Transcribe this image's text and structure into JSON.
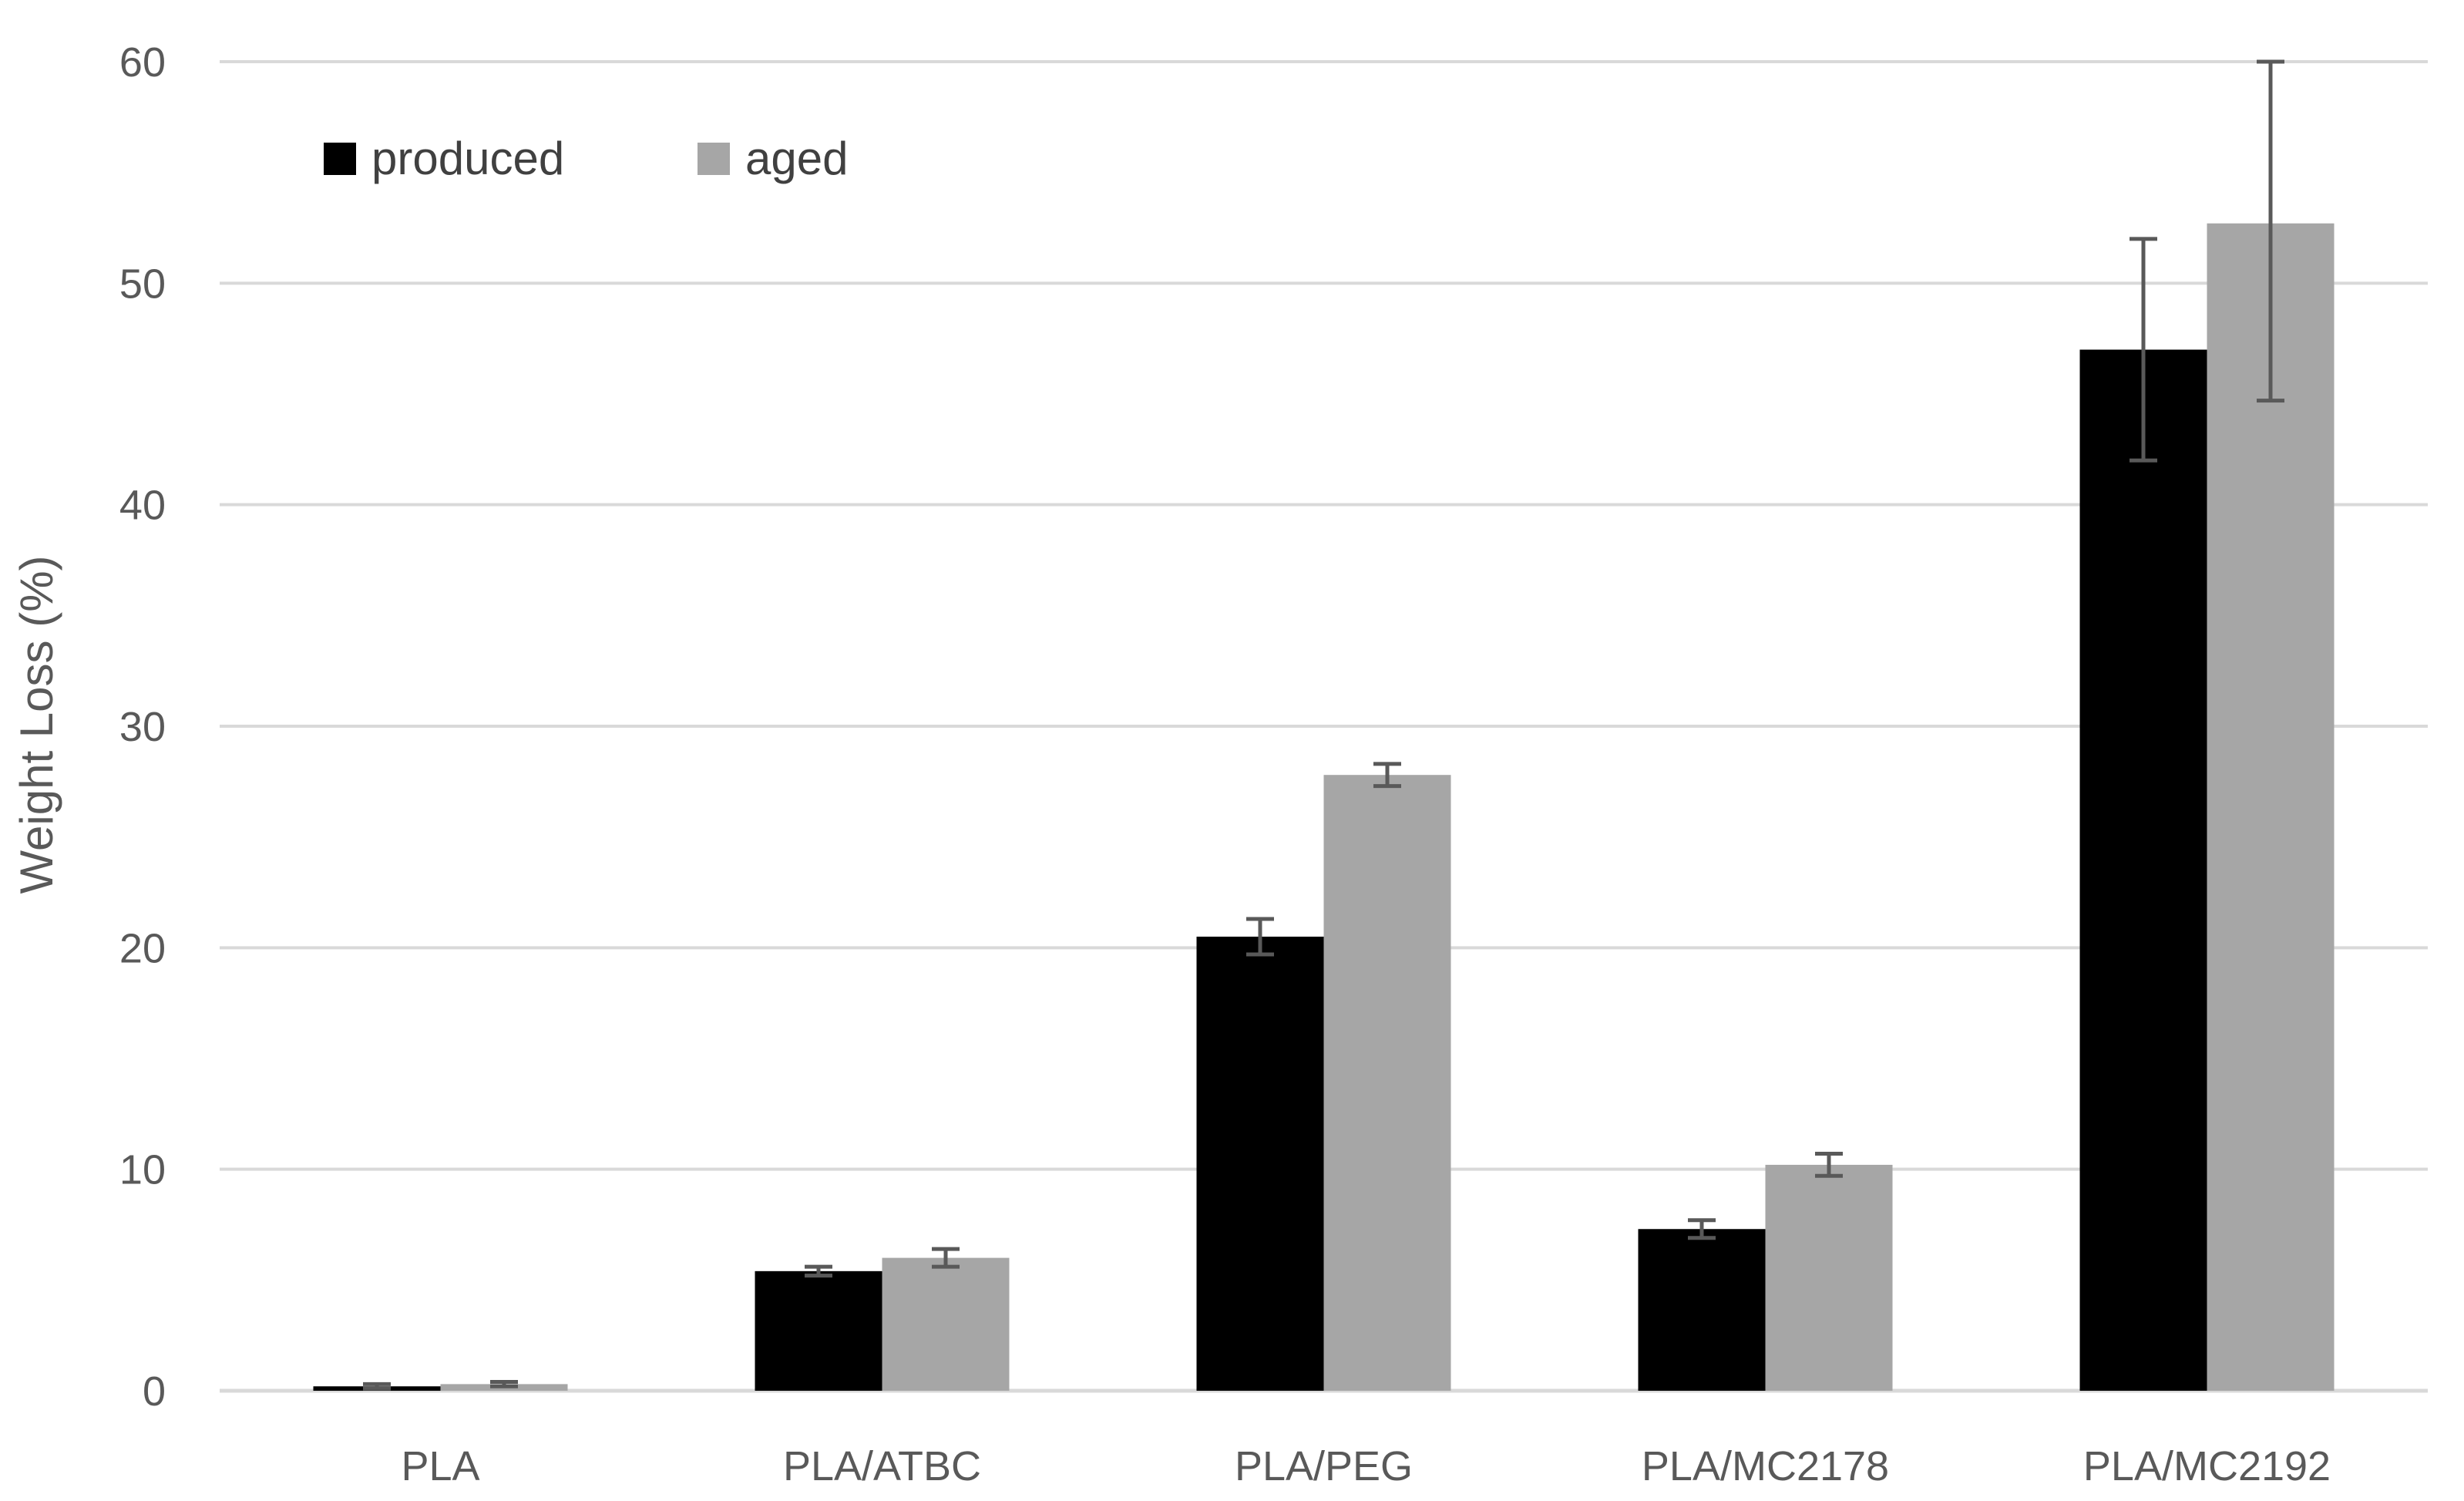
{
  "chart_data": {
    "type": "bar",
    "title": "",
    "xlabel": "",
    "ylabel": "Weight Loss (%)",
    "ylim": [
      0,
      60
    ],
    "yticks": [
      0,
      10,
      20,
      30,
      40,
      50,
      60
    ],
    "grid": true,
    "legend_position": "top-left",
    "categories": [
      "PLA",
      "PLA/ATBC",
      "PLA/PEG",
      "PLA/MC2178",
      "PLA/MC2192"
    ],
    "series": [
      {
        "name": "produced",
        "color": "#000000",
        "values": [
          0.2,
          5.4,
          20.5,
          7.3,
          47.0
        ],
        "errors": [
          0.1,
          0.2,
          0.8,
          0.4,
          5.0
        ]
      },
      {
        "name": "aged",
        "color": "#a6a6a6",
        "values": [
          0.3,
          6.0,
          27.8,
          10.2,
          52.7
        ],
        "errors": [
          0.1,
          0.4,
          0.5,
          0.5,
          8.0
        ]
      }
    ],
    "error_bar_color": "#595959",
    "gridline_color": "#d9d9d9"
  }
}
